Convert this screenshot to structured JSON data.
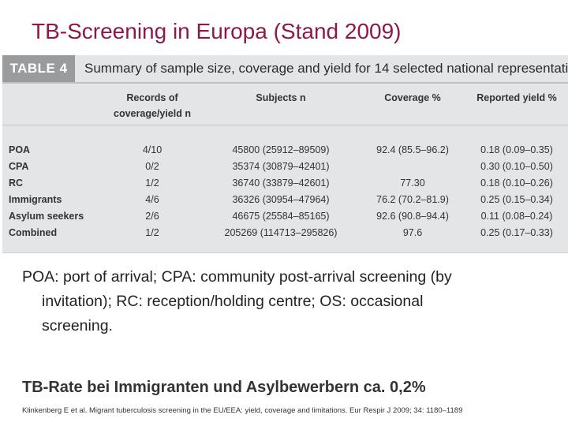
{
  "slide": {
    "title": "TB-Screening in Europa (Stand 2009)"
  },
  "table": {
    "label": "TABLE 4",
    "caption": "Summary of sample size, coverage and yield for 14 selected national representati",
    "headers": {
      "records_line1": "Records of",
      "records_line2": "coverage/yield n",
      "subjects": "Subjects n",
      "coverage": "Coverage %",
      "yield": "Reported yield %"
    },
    "rows": [
      {
        "label": "POA",
        "records": "4/10",
        "subjects": "45800 (25912–89509)",
        "coverage": "92.4 (85.5–96.2)",
        "yield": "0.18 (0.09–0.35)"
      },
      {
        "label": "CPA",
        "records": "0/2",
        "subjects": "35374 (30879–42401)",
        "coverage": "",
        "yield": "0.30 (0.10–0.50)"
      },
      {
        "label": "RC",
        "records": "1/2",
        "subjects": "36740 (33879–42601)",
        "coverage": "77.30",
        "yield": "0.18 (0.10–0.26)"
      },
      {
        "label": "Immigrants",
        "records": "4/6",
        "subjects": "36326 (30954–47964)",
        "coverage": "76.2 (70.2–81.9)",
        "yield": "0.25 (0.15–0.34)"
      },
      {
        "label": "Asylum seekers",
        "records": "2/6",
        "subjects": "46675 (25584–85165)",
        "coverage": "92.6 (90.8–94.4)",
        "yield": "0.11 (0.08–0.24)"
      },
      {
        "label": "Combined",
        "records": "1/2",
        "subjects": "205269 (114713–295826)",
        "coverage": "97.6",
        "yield": "0.25 (0.17–0.33)"
      }
    ]
  },
  "footnote": {
    "line1": "POA: port of arrival; CPA: community post-arrival screening (by",
    "line2": "invitation); RC: reception/holding centre; OS: occasional",
    "line3": "screening."
  },
  "conclusion": "TB-Rate bei Immigranten und Asylbewerbern ca. 0,2%",
  "citation": "Klinkenberg E et al. Migrant tuberculosis screening in the EU/EEA: yield, coverage and limitations. Eur Respir J 2009; 34: 1180–1189"
}
